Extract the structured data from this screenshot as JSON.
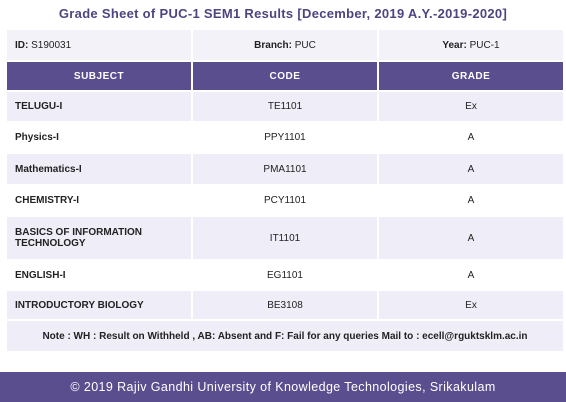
{
  "header": {
    "title": "Grade Sheet of PUC-1 SEM1 Results [December, 2019 A.Y.-2019-2020]"
  },
  "info": [
    {
      "label": "ID:",
      "value": "S190031"
    },
    {
      "label": "Branch:",
      "value": "PUC"
    },
    {
      "label": "Year:",
      "value": "PUC-1"
    }
  ],
  "table": {
    "columns": [
      "SUBJECT",
      "CODE",
      "GRADE"
    ],
    "rows": [
      [
        "TELUGU-I",
        "TE1101",
        "Ex"
      ],
      [
        "Physics-I",
        "PPY1101",
        "A"
      ],
      [
        "Mathematics-I",
        "PMA1101",
        "A"
      ],
      [
        "CHEMISTRY-I",
        "PCY1101",
        "A"
      ],
      [
        "BASICS OF INFORMATION TECHNOLOGY",
        "IT1101",
        "A"
      ],
      [
        "ENGLISH-I",
        "EG1101",
        "A"
      ],
      [
        "INTRODUCTORY BIOLOGY",
        "BE3108",
        "Ex"
      ]
    ],
    "note": "Note : WH : Result on Withheld , AB: Absent and F: Fail for any queries Mail to : ecell@rguktsklm.ac.in"
  },
  "footer": {
    "text": "© 2019 Rajiv Gandhi University of Knowledge Technologies, Srikakulam"
  }
}
